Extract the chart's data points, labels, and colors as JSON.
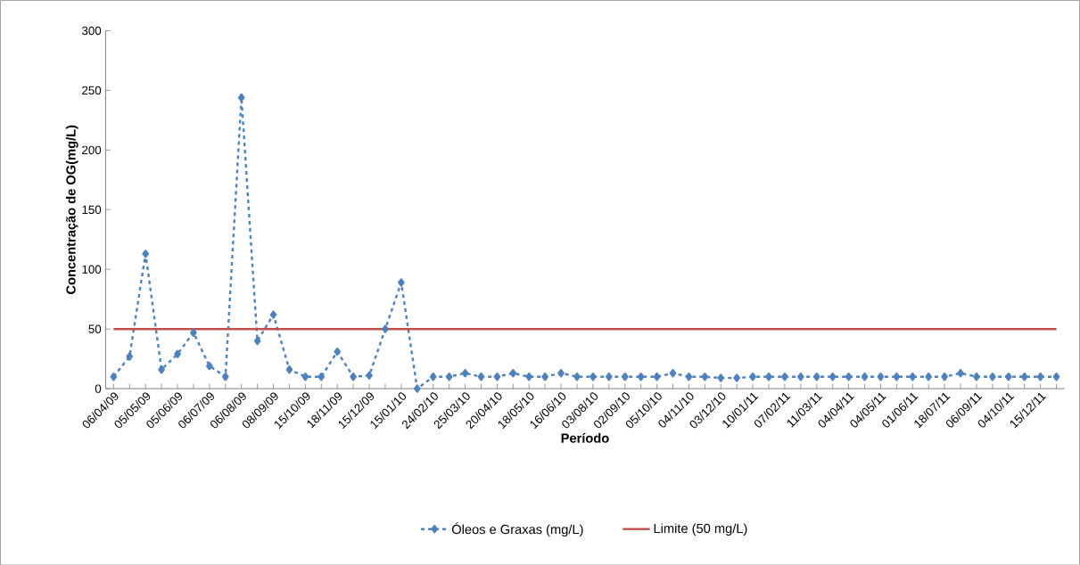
{
  "chart_data": {
    "type": "line",
    "xlabel": "Período",
    "ylabel": "Concentração de OG(mg/L)",
    "categories": [
      "06/04/09",
      null,
      "05/05/09",
      null,
      "05/06/09",
      null,
      "06/07/09",
      null,
      "06/08/09",
      null,
      "08/09/09",
      null,
      "15/10/09",
      null,
      "18/11/09",
      null,
      "15/12/09",
      null,
      "15/01/10",
      null,
      "24/02/10",
      null,
      "25/03/10",
      null,
      "20/04/10",
      null,
      "18/05/10",
      null,
      "16/06/10",
      null,
      "03/08/10",
      null,
      "02/09/10",
      null,
      "05/10/10",
      null,
      "04/11/10",
      null,
      "03/12/10",
      null,
      "10/01/11",
      null,
      "07/02/11",
      null,
      "11/03/11",
      null,
      "04/04/11",
      null,
      "04/05/11",
      null,
      "01/06/11",
      null,
      "18/07/11",
      null,
      "06/09/11",
      null,
      "04/10/11",
      null,
      "15/12/11",
      null
    ],
    "series": [
      {
        "name": "Óleos e Graxas (mg/L)",
        "color": "#4f81bd",
        "values": [
          10,
          27,
          113,
          16,
          29,
          47,
          19,
          10,
          244,
          40,
          62,
          16,
          10,
          10,
          31,
          10,
          11,
          50,
          89,
          0,
          10,
          10,
          13,
          10,
          10,
          13,
          10,
          10,
          13,
          10,
          10,
          10,
          10,
          10,
          10,
          13,
          10,
          10,
          9,
          9,
          10,
          10,
          10,
          10,
          10,
          10,
          10,
          10,
          10,
          10,
          10,
          10,
          10,
          13,
          10,
          10,
          10,
          10,
          10,
          10
        ]
      }
    ],
    "ref_lines": [
      {
        "axis": "y",
        "value": 50,
        "label": "Limite (50 mg/L)",
        "color": "#c0504d",
        "line_style": "solid"
      }
    ],
    "ylim": [
      0,
      300
    ],
    "yticks": [
      0,
      50,
      100,
      150,
      200,
      250,
      300
    ],
    "marker": "diamond",
    "line_style": "dashed",
    "legend": "bottom"
  }
}
